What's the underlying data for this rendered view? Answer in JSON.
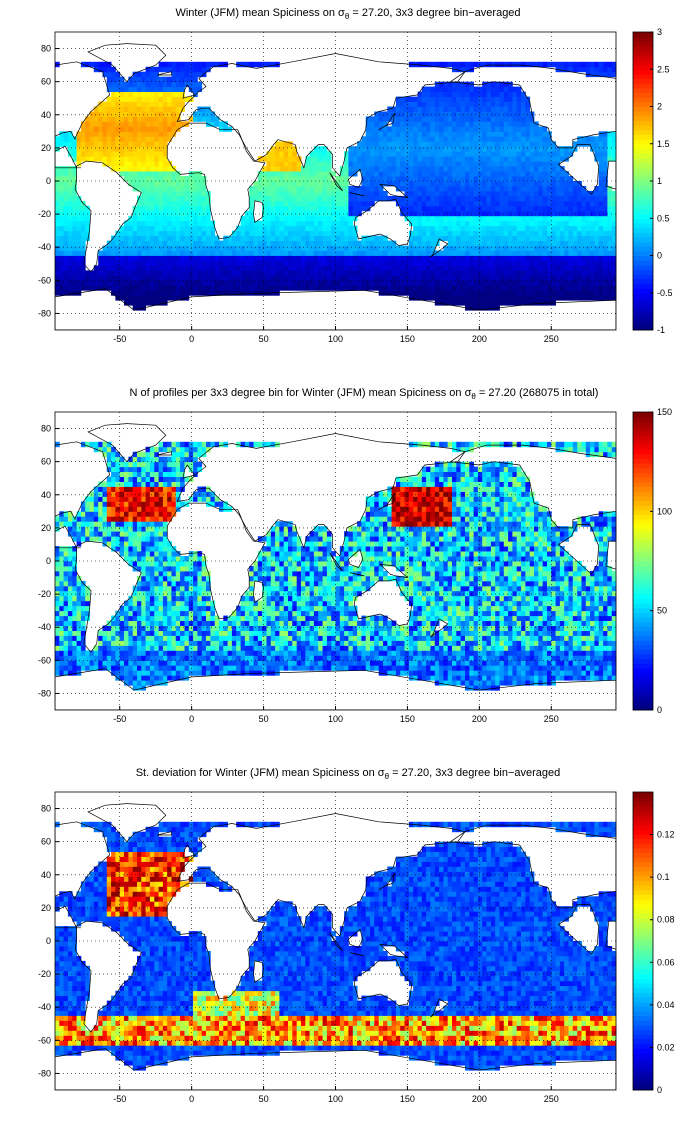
{
  "chart_data": [
    {
      "type": "heatmap",
      "title": "Winter (JFM) mean Spiciness on σθ = 27.20, 3x3 degree bin−averaged",
      "title_parts": [
        "Winter (JFM) mean Spiciness on σ",
        "θ",
        " = 27.20, 3x3 degree bin−averaged"
      ],
      "xlim": [
        -95,
        295
      ],
      "ylim": [
        -90,
        90
      ],
      "xticks": [
        -50,
        0,
        50,
        100,
        150,
        200,
        250
      ],
      "yticks": [
        80,
        60,
        40,
        20,
        0,
        -20,
        -40,
        -60,
        -80
      ],
      "clim": [
        -1,
        3
      ],
      "cticks": [
        3,
        2.5,
        2,
        1.5,
        1,
        0.5,
        0,
        -0.5,
        -1
      ],
      "colormap": "jet",
      "grid": true,
      "field": "spiciness"
    },
    {
      "type": "heatmap",
      "title": "N of profiles per 3x3 degree bin for Winter (JFM) mean Spiciness on σθ = 27.20 (268075 in total)",
      "title_parts": [
        "N of profiles per 3x3 degree bin for Winter (JFM) mean Spiciness on σ",
        "θ",
        " = 27.20 (268075 in total)"
      ],
      "xlim": [
        -95,
        295
      ],
      "ylim": [
        -90,
        90
      ],
      "xticks": [
        -50,
        0,
        50,
        100,
        150,
        200,
        250
      ],
      "yticks": [
        80,
        60,
        40,
        20,
        0,
        -20,
        -40,
        -60,
        -80
      ],
      "clim": [
        0,
        150
      ],
      "cticks": [
        150,
        100,
        50,
        0
      ],
      "colormap": "jet",
      "grid": true,
      "field": "count"
    },
    {
      "type": "heatmap",
      "title": "St. deviation for Winter (JFM) mean Spiciness on σθ = 27.20, 3x3 degree bin−averaged",
      "title_parts": [
        "St. deviation for Winter (JFM) mean Spiciness on σ",
        "θ",
        " = 27.20, 3x3 degree bin−averaged"
      ],
      "xlim": [
        -95,
        295
      ],
      "ylim": [
        -90,
        90
      ],
      "xticks": [
        -50,
        0,
        50,
        100,
        150,
        200,
        250
      ],
      "yticks": [
        80,
        60,
        40,
        20,
        0,
        -20,
        -40,
        -60,
        -80
      ],
      "clim": [
        0,
        0.14
      ],
      "cticks": [
        0.12,
        0.1,
        0.08,
        0.06,
        0.04,
        0.02,
        0
      ],
      "colormap": "jet",
      "grid": true,
      "field": "std"
    }
  ]
}
